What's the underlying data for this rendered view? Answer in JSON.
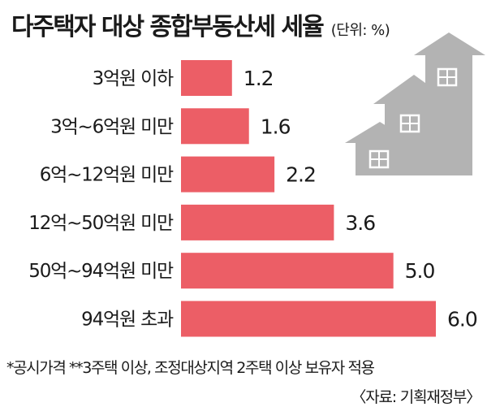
{
  "header": {
    "title": "다주택자 대상 종합부동산세 세율",
    "unit": "(단위: %)"
  },
  "footnote": "*공시가격  **3주택 이상, 조정대상지역 2주택 이상 보유자 적용",
  "source": "〈자료: 기획재정부〉",
  "colors": {
    "bar": "#ec5e66",
    "house": "#b3b3b3",
    "window": "#ffffff"
  },
  "icons": [
    "houses-icon"
  ],
  "chart_data": {
    "type": "bar",
    "orientation": "horizontal",
    "categories": [
      "3억원 이하",
      "3억~6억원 미만",
      "6억~12억원 미만",
      "12억~50억원 미만",
      "50억~94억원 미만",
      "94억원 초과"
    ],
    "values": [
      1.2,
      1.6,
      2.2,
      3.6,
      5.0,
      6.0
    ],
    "value_labels": [
      "1.2",
      "1.6",
      "2.2",
      "3.6",
      "5.0",
      "6.0"
    ],
    "title": "다주택자 대상 종합부동산세 세율",
    "xlim": [
      0,
      6.0
    ],
    "grid": false,
    "legend": "none"
  }
}
